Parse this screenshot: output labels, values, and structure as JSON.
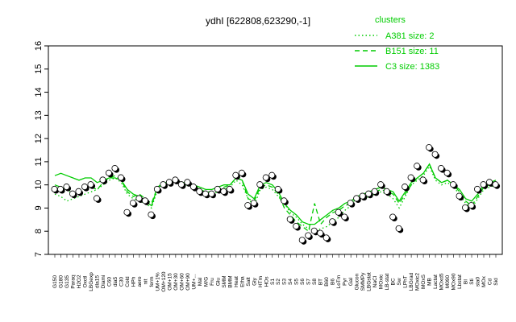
{
  "chart_data": {
    "type": "line",
    "title": "ydhI [622808,623290,-1]",
    "xlabel": "",
    "ylabel": "",
    "ylim": [
      7,
      16
    ],
    "yticks": [
      7,
      8,
      9,
      10,
      11,
      12,
      13,
      14,
      15,
      16
    ],
    "grid": false,
    "legend_placement": "top-right",
    "legend_title": "clusters",
    "colors": {
      "series": "#00cc00",
      "points": "#000000",
      "open_points": "#ffffff"
    },
    "categories": [
      "G150",
      "G180",
      "G135",
      "Paraq",
      "H2O2",
      "Oxctl",
      "LBGexp",
      "dla15",
      "Diami",
      "C60",
      "dia5",
      "C30",
      "Cold",
      "HPh",
      "aero",
      "nit",
      "ferm",
      "UM+1%",
      "OM+120",
      "OM+15",
      "OM+30",
      "OM+60",
      "OM+90",
      "UM+...",
      "Mal",
      "M/G",
      "Fru",
      "Glu",
      "SMM",
      "BMM",
      "Heat",
      "Etha",
      "Salt",
      "Gly",
      "HTm",
      "HOs",
      "S1",
      "S2",
      "S3",
      "S4",
      "S5",
      "S6",
      "S7",
      "S8",
      "BT",
      "B60",
      "B6",
      "LoTm",
      "Pyr",
      "Gal",
      "Glucon",
      "SMMPy",
      "LBGstat",
      "NaCl",
      "MOxic",
      "LB-stat",
      "BC",
      "Sw",
      "LPhT",
      "LBGrad",
      "MOxic2",
      "MOxS",
      "MB",
      "Lactat",
      "MOxd5",
      "M090",
      "MOx90",
      "Lbstat",
      "BI",
      "Sti",
      "sla0",
      "MOx",
      "Cd",
      "Sid"
    ],
    "series": [
      {
        "name": "A381 size: 2",
        "style": "dotted",
        "values": [
          9.6,
          9.5,
          9.3,
          9.4,
          9.5,
          9.6,
          9.7,
          9.8,
          10.0,
          10.2,
          10.3,
          10.1,
          9.6,
          9.4,
          9.3,
          9.2,
          9.0,
          9.8,
          10.0,
          10.1,
          10.1,
          10.0,
          10.0,
          9.9,
          9.7,
          9.6,
          9.6,
          9.7,
          9.8,
          9.9,
          10.2,
          10.0,
          9.4,
          9.1,
          9.8,
          9.9,
          9.8,
          9.5,
          9.2,
          8.8,
          8.6,
          8.3,
          8.1,
          8.0,
          8.1,
          8.2,
          8.4,
          8.6,
          8.9,
          9.1,
          9.3,
          9.4,
          9.5,
          9.6,
          9.7,
          9.6,
          9.4,
          9.0,
          9.5,
          10.0,
          10.2,
          10.4,
          10.8,
          10.2,
          10.0,
          10.1,
          9.9,
          9.6,
          9.2,
          9.0,
          9.4,
          9.8,
          9.9,
          10.0
        ]
      },
      {
        "name": "B151 size: 11",
        "style": "dashed",
        "values": [
          10.0,
          9.9,
          9.8,
          9.6,
          9.7,
          9.8,
          9.9,
          9.8,
          10.1,
          10.3,
          10.4,
          10.2,
          9.7,
          9.5,
          9.6,
          9.4,
          9.2,
          9.9,
          10.0,
          10.1,
          10.2,
          10.0,
          10.1,
          10.0,
          9.8,
          9.7,
          9.7,
          9.8,
          9.9,
          10.0,
          10.3,
          10.2,
          9.4,
          9.3,
          9.9,
          10.0,
          9.9,
          9.6,
          9.0,
          8.7,
          8.4,
          8.2,
          8.0,
          9.2,
          8.3,
          8.6,
          8.8,
          8.9,
          9.1,
          9.2,
          9.4,
          9.5,
          9.6,
          9.7,
          9.8,
          9.7,
          9.6,
          9.2,
          9.6,
          10.0,
          10.3,
          10.5,
          10.9,
          10.3,
          10.1,
          10.2,
          10.0,
          9.7,
          9.3,
          9.1,
          9.5,
          9.9,
          10.0,
          10.1
        ]
      },
      {
        "name": "C3 size: 1383",
        "style": "solid",
        "values": [
          10.4,
          10.5,
          10.4,
          10.3,
          10.2,
          10.3,
          10.3,
          10.1,
          10.2,
          10.3,
          10.3,
          10.2,
          9.8,
          9.6,
          9.5,
          9.3,
          9.1,
          9.9,
          10.1,
          10.1,
          10.2,
          10.1,
          10.1,
          10.0,
          9.9,
          9.8,
          9.8,
          9.9,
          10.0,
          10.0,
          10.3,
          10.2,
          9.6,
          9.4,
          10.0,
          10.1,
          10.0,
          9.7,
          9.2,
          8.9,
          8.7,
          8.4,
          8.3,
          8.3,
          8.5,
          8.7,
          8.9,
          9.0,
          9.2,
          9.3,
          9.5,
          9.6,
          9.7,
          9.8,
          9.9,
          9.8,
          9.7,
          9.3,
          9.7,
          10.1,
          10.3,
          10.5,
          10.9,
          10.3,
          10.1,
          10.2,
          10.0,
          9.8,
          9.4,
          9.3,
          9.6,
          10.0,
          10.1,
          10.2
        ]
      }
    ],
    "points": [
      {
        "x": "G150",
        "y": 9.8
      },
      {
        "x": "G180",
        "y": 9.8
      },
      {
        "x": "G135",
        "y": 9.9
      },
      {
        "x": "Paraq",
        "y": 9.6
      },
      {
        "x": "H2O2",
        "y": 9.7
      },
      {
        "x": "Oxctl",
        "y": 9.9
      },
      {
        "x": "LBGexp",
        "y": 10.0
      },
      {
        "x": "dla15",
        "y": 9.4
      },
      {
        "x": "Diami",
        "y": 10.2
      },
      {
        "x": "C60",
        "y": 10.5
      },
      {
        "x": "dia5",
        "y": 10.7
      },
      {
        "x": "C30",
        "y": 10.3
      },
      {
        "x": "Cold",
        "y": 8.8
      },
      {
        "x": "HPh",
        "y": 9.2
      },
      {
        "x": "aero",
        "y": 9.4
      },
      {
        "x": "nit",
        "y": 9.3
      },
      {
        "x": "ferm",
        "y": 8.7
      },
      {
        "x": "UM+1%",
        "y": 9.8
      },
      {
        "x": "OM+120",
        "y": 10.0
      },
      {
        "x": "OM+15",
        "y": 10.1
      },
      {
        "x": "OM+30",
        "y": 10.2
      },
      {
        "x": "OM+60",
        "y": 10.0
      },
      {
        "x": "OM+90",
        "y": 10.1
      },
      {
        "x": "UM+...",
        "y": 9.9
      },
      {
        "x": "Mal",
        "y": 9.7
      },
      {
        "x": "M/G",
        "y": 9.6
      },
      {
        "x": "Fru",
        "y": 9.6
      },
      {
        "x": "Glu",
        "y": 9.8
      },
      {
        "x": "SMM",
        "y": 9.7
      },
      {
        "x": "BMM",
        "y": 9.8
      },
      {
        "x": "Heat",
        "y": 10.4
      },
      {
        "x": "Etha",
        "y": 10.5
      },
      {
        "x": "Salt",
        "y": 9.1
      },
      {
        "x": "Gly",
        "y": 9.2
      },
      {
        "x": "HTm",
        "y": 10.0
      },
      {
        "x": "HOs",
        "y": 10.3
      },
      {
        "x": "S1",
        "y": 10.4
      },
      {
        "x": "S2",
        "y": 9.8
      },
      {
        "x": "S3",
        "y": 9.3
      },
      {
        "x": "S4",
        "y": 8.5
      },
      {
        "x": "S5",
        "y": 8.2
      },
      {
        "x": "S6",
        "y": 7.6
      },
      {
        "x": "S7",
        "y": 7.8
      },
      {
        "x": "S8",
        "y": 8.0
      },
      {
        "x": "BT",
        "y": 7.9
      },
      {
        "x": "B60",
        "y": 7.7
      },
      {
        "x": "B6",
        "y": 8.4
      },
      {
        "x": "LoTm",
        "y": 8.8
      },
      {
        "x": "Pyr",
        "y": 8.6
      },
      {
        "x": "Gal",
        "y": 9.2
      },
      {
        "x": "Glucon",
        "y": 9.4
      },
      {
        "x": "SMMPy",
        "y": 9.5
      },
      {
        "x": "LBGstat",
        "y": 9.6
      },
      {
        "x": "NaCl",
        "y": 9.7
      },
      {
        "x": "MOxic",
        "y": 10.0
      },
      {
        "x": "LB-stat",
        "y": 9.7
      },
      {
        "x": "BC",
        "y": 8.6
      },
      {
        "x": "Sw",
        "y": 8.1
      },
      {
        "x": "LPhT",
        "y": 9.9
      },
      {
        "x": "LBGrad",
        "y": 10.3
      },
      {
        "x": "MOxic2",
        "y": 10.8
      },
      {
        "x": "MOxS",
        "y": 10.2
      },
      {
        "x": "MB",
        "y": 11.6
      },
      {
        "x": "Lactat",
        "y": 11.3
      },
      {
        "x": "MOxd5",
        "y": 10.7
      },
      {
        "x": "M090",
        "y": 10.5
      },
      {
        "x": "MOx90",
        "y": 10.0
      },
      {
        "x": "Lbstat",
        "y": 9.5
      },
      {
        "x": "BI",
        "y": 9.0
      },
      {
        "x": "Sti",
        "y": 9.1
      },
      {
        "x": "sla0",
        "y": 9.8
      },
      {
        "x": "MOx",
        "y": 10.0
      },
      {
        "x": "Cd",
        "y": 10.1
      },
      {
        "x": "Sid",
        "y": 10.0
      }
    ]
  }
}
